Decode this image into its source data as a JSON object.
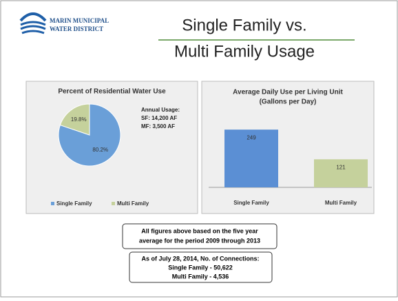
{
  "header": {
    "logo": [
      "MARIN MUNICIPAL",
      "WATER DISTRICT"
    ],
    "title": [
      "Single Family vs.",
      "Multi Family Usage"
    ]
  },
  "chart_data": [
    {
      "type": "pie",
      "title": "Percent of Residential Water Use",
      "categories": [
        "Single Family",
        "Multi Family"
      ],
      "values": [
        80.2,
        19.8
      ],
      "value_labels": [
        "80.2%",
        "19.8%"
      ],
      "colors": [
        "#6a9fd8",
        "#c5d19c"
      ],
      "annotations": [
        "Annual Usage:",
        "SF:  14,200 AF",
        "MF:  3,500 AF"
      ],
      "legend": "bottom"
    },
    {
      "type": "bar",
      "title": [
        "Average Daily Use per Living Unit",
        "(Gallons per Day)"
      ],
      "categories": [
        "Single Family",
        "Multi Family"
      ],
      "values": [
        249,
        121
      ],
      "colors": [
        "#5b8fd4",
        "#c5d19c"
      ],
      "ylim": [
        0,
        300
      ]
    }
  ],
  "notes": {
    "period": [
      "All figures above based on the five year",
      "average for the period 2009 through 2013"
    ],
    "connections": [
      "As of July 28, 2014, No. of Connections:",
      "Single Family - 50,622",
      "Multi Family - 4,536"
    ]
  }
}
